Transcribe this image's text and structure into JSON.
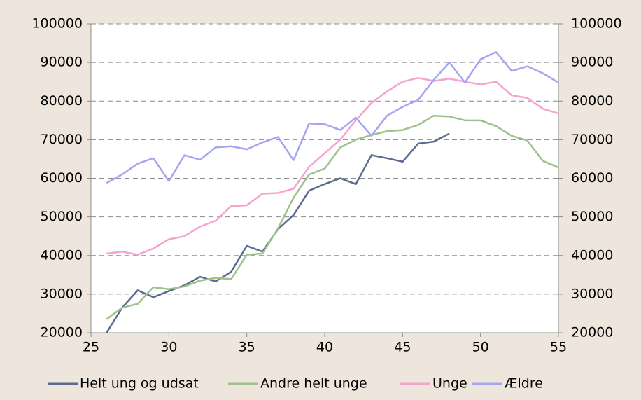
{
  "chart_data": {
    "type": "line",
    "xlim": [
      25,
      55
    ],
    "xticks": [
      25,
      30,
      35,
      40,
      45,
      50,
      55
    ],
    "ylim": [
      20000,
      100000
    ],
    "yticks": [
      20000,
      30000,
      40000,
      50000,
      60000,
      70000,
      80000,
      90000,
      100000
    ],
    "y2lim": [
      20000,
      100000
    ],
    "y2ticks": [
      20000,
      30000,
      40000,
      50000,
      60000,
      70000,
      80000,
      90000,
      100000
    ],
    "grid": true,
    "legend": "bottom",
    "series": [
      {
        "name": "Helt ung og udsat",
        "color": "#5b6b90",
        "x": [
          26,
          27,
          28,
          29,
          30,
          31,
          32,
          33,
          34,
          35,
          36,
          37,
          38,
          39,
          40,
          41,
          42,
          43,
          44,
          45,
          46,
          47,
          48
        ],
        "values": [
          20000,
          26500,
          31000,
          29200,
          30800,
          32300,
          34500,
          33300,
          35800,
          42500,
          41000,
          46800,
          50500,
          56800,
          58500,
          60000,
          58500,
          66000,
          65200,
          64300,
          69000,
          69500,
          71600
        ]
      },
      {
        "name": "Andre helt unge",
        "color": "#9dc28c",
        "x": [
          26,
          27,
          28,
          29,
          30,
          31,
          32,
          33,
          34,
          35,
          36,
          37,
          38,
          39,
          40,
          41,
          42,
          43,
          44,
          45,
          46,
          47,
          48,
          49,
          50,
          51,
          52,
          53,
          54,
          55
        ],
        "values": [
          23500,
          26500,
          27500,
          31800,
          31300,
          32000,
          33500,
          34200,
          33900,
          40200,
          40500,
          47000,
          55000,
          61000,
          62500,
          68000,
          70000,
          71200,
          72200,
          72500,
          73800,
          76200,
          76000,
          75000,
          75000,
          73500,
          71000,
          69800,
          64500,
          62800
        ]
      },
      {
        "name": "Unge",
        "color": "#f5a3cf",
        "x": [
          26,
          27,
          28,
          29,
          30,
          31,
          32,
          33,
          34,
          35,
          36,
          37,
          38,
          39,
          40,
          41,
          42,
          43,
          44,
          45,
          46,
          47,
          48,
          49,
          50,
          51,
          52,
          53,
          54,
          55
        ],
        "values": [
          40500,
          41000,
          40200,
          41800,
          44200,
          45000,
          47500,
          49000,
          52800,
          53000,
          56000,
          56200,
          57300,
          63000,
          66500,
          70000,
          75000,
          79500,
          82500,
          85000,
          86000,
          85200,
          85800,
          85000,
          84300,
          85000,
          81500,
          80800,
          78000,
          76800
        ]
      },
      {
        "name": "Ældre",
        "color": "#a5a5f2",
        "x": [
          26,
          27,
          28,
          29,
          30,
          31,
          32,
          33,
          34,
          35,
          36,
          37,
          38,
          39,
          40,
          41,
          42,
          43,
          44,
          45,
          46,
          47,
          48,
          49,
          50,
          51,
          52,
          53,
          54,
          55
        ],
        "values": [
          58800,
          61000,
          63800,
          65200,
          59300,
          66000,
          64800,
          68000,
          68300,
          67500,
          69300,
          70700,
          64700,
          74200,
          74000,
          72500,
          75700,
          71000,
          76200,
          78500,
          80300,
          85500,
          90000,
          84800,
          90800,
          92700,
          87800,
          89000,
          87200,
          84800
        ]
      }
    ]
  }
}
